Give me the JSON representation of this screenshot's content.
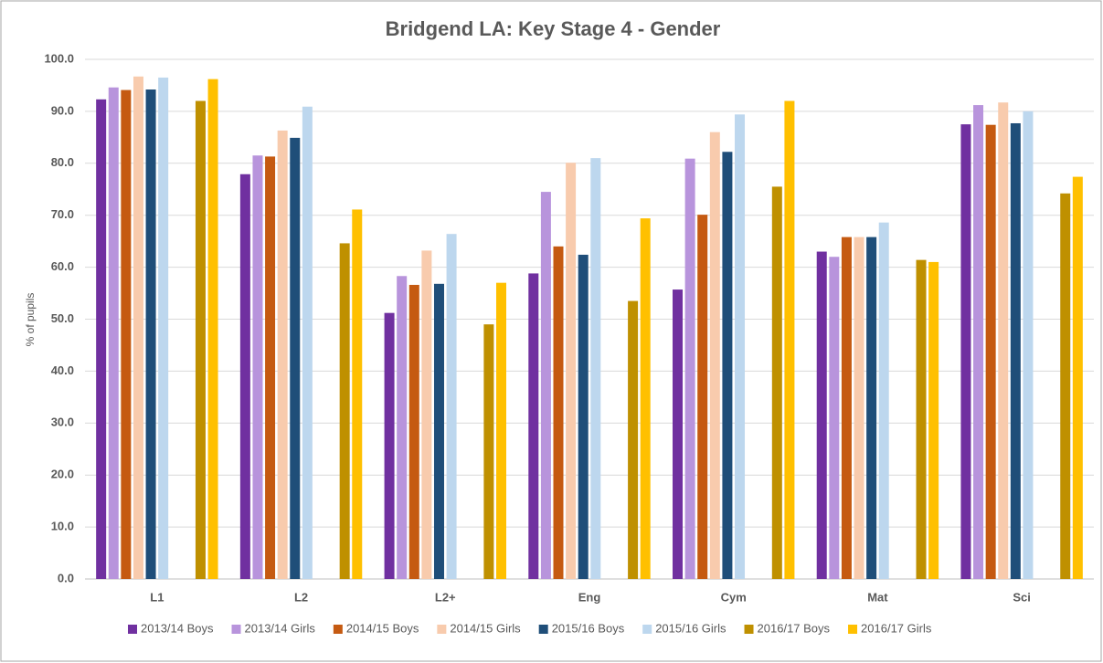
{
  "chart_data": {
    "type": "bar",
    "title": "Bridgend LA: Key Stage 4 - Gender",
    "y_label": "% of pupils",
    "categories": [
      "L1",
      "L2",
      "L2+",
      "Eng",
      "Cym",
      "Mat",
      "Sci"
    ],
    "series": [
      {
        "name": "2013/14 Boys",
        "color": "#7030a0",
        "values": [
          92.3,
          77.9,
          51.2,
          58.8,
          55.7,
          63.0,
          87.5
        ]
      },
      {
        "name": "2013/14 Girls",
        "color": "#b894dc",
        "values": [
          94.6,
          81.5,
          58.3,
          74.5,
          80.9,
          62.0,
          91.2
        ]
      },
      {
        "name": "2014/15 Boys",
        "color": "#c55a11",
        "values": [
          94.1,
          81.3,
          56.6,
          64.0,
          70.1,
          65.8,
          87.4
        ]
      },
      {
        "name": "2014/15 Girls",
        "color": "#f8cbad",
        "values": [
          96.7,
          86.3,
          63.2,
          80.1,
          86.0,
          65.8,
          91.7
        ]
      },
      {
        "name": "2015/16 Boys",
        "color": "#1f4e79",
        "values": [
          94.2,
          84.9,
          56.8,
          62.4,
          82.2,
          65.8,
          87.7
        ]
      },
      {
        "name": "2015/16 Girls",
        "color": "#bdd7ee",
        "values": [
          96.5,
          90.9,
          66.4,
          81.0,
          89.4,
          68.6,
          90.0
        ]
      },
      {
        "name": "2016/17 Boys",
        "color": "#bf9000",
        "values": [
          92.0,
          64.6,
          49.0,
          53.5,
          75.5,
          61.4,
          74.2
        ]
      },
      {
        "name": "2016/17 Girls",
        "color": "#ffc000",
        "values": [
          96.2,
          71.1,
          57.0,
          69.4,
          92.0,
          61.0,
          77.4
        ]
      }
    ],
    "ylim": [
      0,
      100
    ],
    "yticks": [
      {
        "value": 0,
        "label": "0.0"
      },
      {
        "value": 10,
        "label": "10.0"
      },
      {
        "value": 20,
        "label": "20.0"
      },
      {
        "value": 30,
        "label": "30.0"
      },
      {
        "value": 40,
        "label": "40.0"
      },
      {
        "value": 50,
        "label": "50.0"
      },
      {
        "value": 60,
        "label": "60.0"
      },
      {
        "value": 70,
        "label": "70.0"
      },
      {
        "value": 80,
        "label": "80.0"
      },
      {
        "value": 90,
        "label": "90.0"
      },
      {
        "value": 100,
        "label": "100.0"
      }
    ],
    "grid": true,
    "legend": "bottom"
  }
}
